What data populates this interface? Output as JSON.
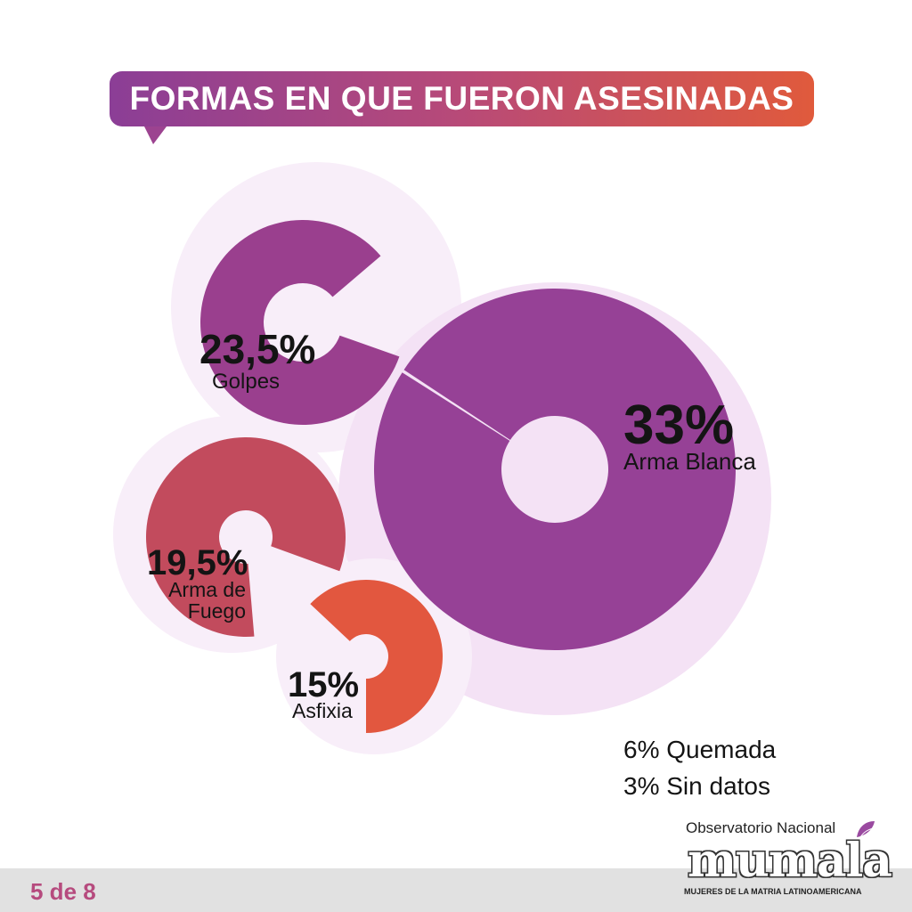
{
  "title": "FORMAS EN QUE FUERON ASESINADAS",
  "chart_data": {
    "type": "pie",
    "title": "FORMAS EN QUE FUERON ASESINADAS",
    "series": [
      {
        "name": "Golpes",
        "value": 23.5,
        "label": "23,5%",
        "color": "#9a3f8e"
      },
      {
        "name": "Arma Blanca",
        "value": 33,
        "label": "33%",
        "color": "#964196"
      },
      {
        "name": "Arma de Fuego",
        "value": 19.5,
        "label": "19,5%",
        "color": "#c24b5d"
      },
      {
        "name": "Asfixia",
        "value": 15,
        "label": "15%",
        "color": "#e2573f"
      }
    ],
    "others": [
      {
        "name": "Quemada",
        "value": 6,
        "text": "6% Quemada"
      },
      {
        "name": "Sin datos",
        "value": 3,
        "text": "3% Sin datos"
      }
    ]
  },
  "colors": {
    "bubble_bg": "#f8eef9",
    "bubble_bg_large": "#f4e2f5",
    "title_gradient_start": "#8b3e96",
    "title_gradient_end": "#e05a3c",
    "page_indicator": "#b64b7e",
    "footer": "#e1e1e1"
  },
  "footer": {
    "page_indicator": "5 de 8",
    "logo_top": "Observatorio Nacional",
    "logo_word": "mumala",
    "logo_sub": "MUJERES DE LA MATRIA LATINOAMERICANA",
    "logo_icon": "butterfly-icon"
  }
}
